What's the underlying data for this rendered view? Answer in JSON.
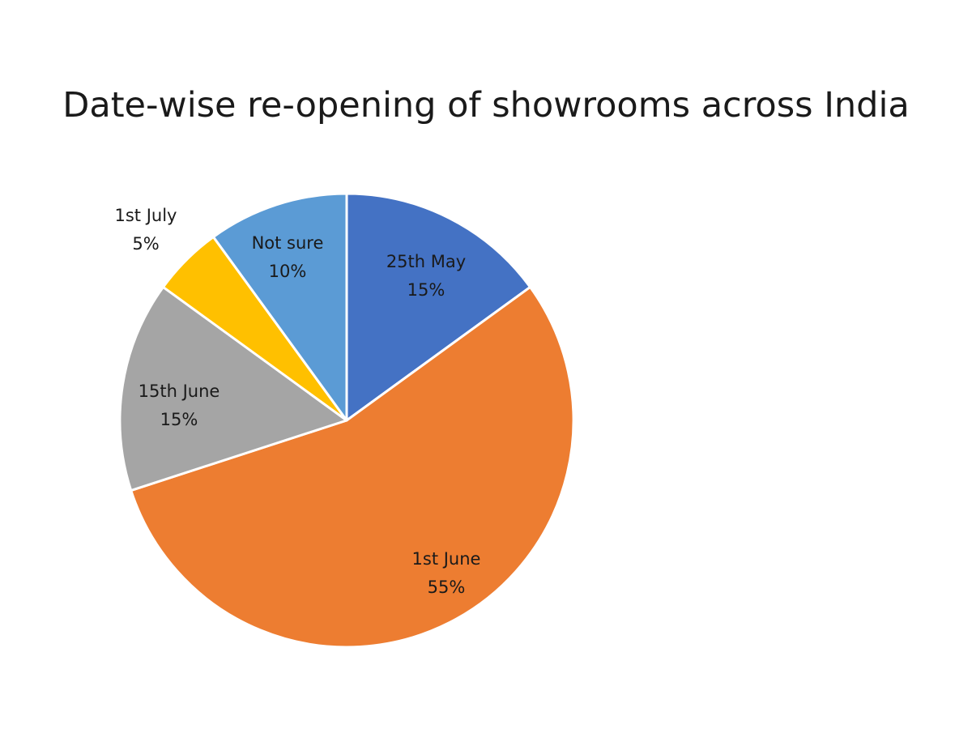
{
  "chart_data": {
    "type": "pie",
    "title": "Date-wise re-opening of showrooms across India",
    "slices": [
      {
        "label": "25th May",
        "value": 15,
        "value_label": "15%",
        "color": "#4472C4"
      },
      {
        "label": "1st June",
        "value": 55,
        "value_label": "55%",
        "color": "#ED7D31"
      },
      {
        "label": "15th June",
        "value": 15,
        "value_label": "15%",
        "color": "#A5A5A5"
      },
      {
        "label": "1st July",
        "value": 5,
        "value_label": "5%",
        "color": "#FFC000"
      },
      {
        "label": "Not sure",
        "value": 10,
        "value_label": "10%",
        "color": "#5B9BD5"
      }
    ],
    "start_angle": "12 o'clock",
    "direction": "clockwise",
    "legend": "none",
    "data_labels": "category and percentage"
  }
}
